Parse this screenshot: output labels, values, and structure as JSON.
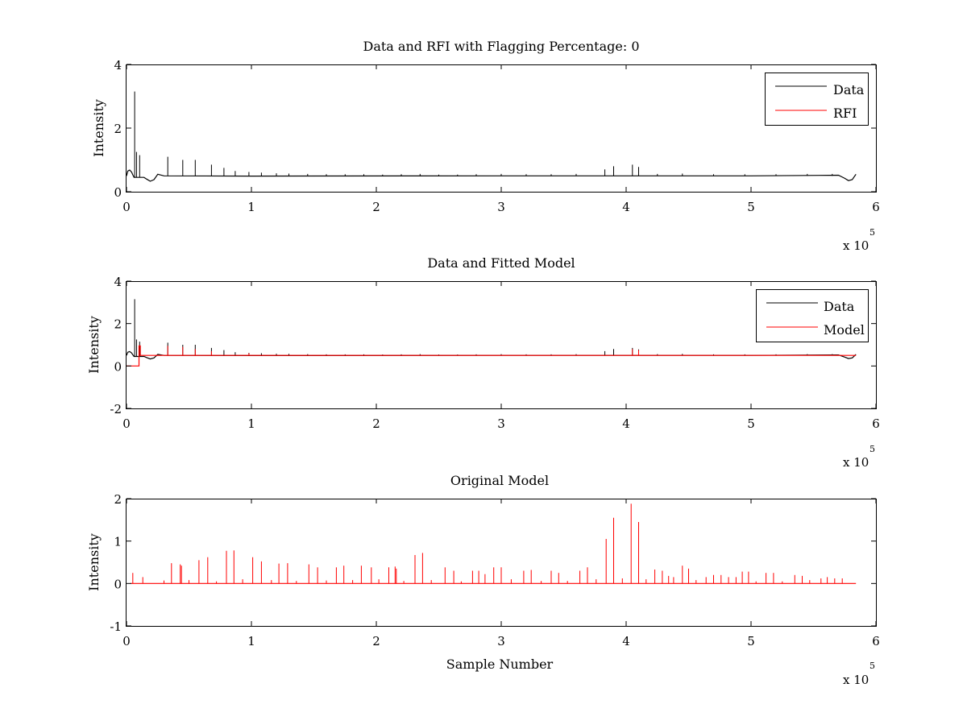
{
  "chart_data": [
    {
      "type": "line",
      "title": "Data and RFI with Flagging Percentage: 0",
      "xlabel": "",
      "ylabel": "Intensity",
      "xlim": [
        0,
        600000
      ],
      "ylim": [
        0,
        4
      ],
      "xticks": [
        0,
        1,
        2,
        3,
        4,
        5,
        6
      ],
      "yticks": [
        0,
        2,
        4
      ],
      "x_multiplier": {
        "prefix": "x 10",
        "exponent": "5"
      },
      "grid": false,
      "legend": "top-right",
      "colors": {
        "data": "#000000",
        "rfi": "#ff0000"
      },
      "series": [
        {
          "name": "Data",
          "color": "#000000",
          "baseline": [
            [
              0,
              0.5
            ],
            [
              1000,
              0.65
            ],
            [
              2500,
              0.68
            ],
            [
              4000,
              0.62
            ],
            [
              6000,
              0.45
            ],
            [
              14000,
              0.45
            ],
            [
              16000,
              0.4
            ],
            [
              19000,
              0.33
            ],
            [
              22000,
              0.38
            ],
            [
              25000,
              0.55
            ],
            [
              30000,
              0.5
            ],
            [
              100000,
              0.49
            ],
            [
              300000,
              0.5
            ],
            [
              500000,
              0.5
            ],
            [
              570000,
              0.52
            ],
            [
              575000,
              0.42
            ],
            [
              578000,
              0.35
            ],
            [
              581000,
              0.38
            ],
            [
              584000,
              0.55
            ]
          ],
          "spikes": [
            [
              6500,
              3.15
            ],
            [
              8000,
              1.25
            ],
            [
              10500,
              1.15
            ],
            [
              33000,
              1.1
            ],
            [
              45000,
              1.0
            ],
            [
              55000,
              1.0
            ],
            [
              68000,
              0.85
            ],
            [
              78000,
              0.75
            ],
            [
              87000,
              0.65
            ],
            [
              98000,
              0.62
            ],
            [
              108000,
              0.6
            ],
            [
              120000,
              0.58
            ],
            [
              130000,
              0.57
            ],
            [
              145000,
              0.56
            ],
            [
              160000,
              0.55
            ],
            [
              175000,
              0.55
            ],
            [
              190000,
              0.55
            ],
            [
              205000,
              0.54
            ],
            [
              220000,
              0.55
            ],
            [
              235000,
              0.56
            ],
            [
              250000,
              0.54
            ],
            [
              265000,
              0.54
            ],
            [
              280000,
              0.55
            ],
            [
              300000,
              0.56
            ],
            [
              320000,
              0.55
            ],
            [
              340000,
              0.55
            ],
            [
              360000,
              0.56
            ],
            [
              383000,
              0.7
            ],
            [
              390000,
              0.8
            ],
            [
              405000,
              0.85
            ],
            [
              410000,
              0.78
            ],
            [
              425000,
              0.56
            ],
            [
              445000,
              0.57
            ],
            [
              470000,
              0.55
            ],
            [
              495000,
              0.55
            ],
            [
              520000,
              0.55
            ],
            [
              545000,
              0.56
            ],
            [
              565000,
              0.56
            ]
          ]
        },
        {
          "name": "RFI",
          "color": "#ff0000",
          "values": []
        }
      ]
    },
    {
      "type": "line",
      "title": "Data and Fitted Model",
      "xlabel": "",
      "ylabel": "Intensity",
      "xlim": [
        0,
        600000
      ],
      "ylim": [
        -2,
        4
      ],
      "xticks": [
        0,
        1,
        2,
        3,
        4,
        5,
        6
      ],
      "yticks": [
        -2,
        0,
        2,
        4
      ],
      "x_multiplier": {
        "prefix": "x 10",
        "exponent": "5"
      },
      "grid": false,
      "legend": "top-right",
      "series": [
        {
          "name": "Data",
          "color": "#000000",
          "baseline": [
            [
              0,
              0.5
            ],
            [
              1000,
              0.65
            ],
            [
              2500,
              0.68
            ],
            [
              4000,
              0.62
            ],
            [
              6000,
              0.45
            ],
            [
              14000,
              0.45
            ],
            [
              16000,
              0.4
            ],
            [
              19000,
              0.33
            ],
            [
              22000,
              0.38
            ],
            [
              25000,
              0.55
            ],
            [
              30000,
              0.5
            ],
            [
              100000,
              0.49
            ],
            [
              300000,
              0.5
            ],
            [
              500000,
              0.5
            ],
            [
              570000,
              0.52
            ],
            [
              575000,
              0.42
            ],
            [
              578000,
              0.35
            ],
            [
              581000,
              0.38
            ],
            [
              584000,
              0.55
            ]
          ],
          "spikes": [
            [
              6500,
              3.15
            ],
            [
              8000,
              1.25
            ],
            [
              10500,
              1.15
            ],
            [
              33000,
              1.1
            ],
            [
              45000,
              1.0
            ],
            [
              55000,
              1.0
            ],
            [
              68000,
              0.85
            ],
            [
              78000,
              0.75
            ],
            [
              87000,
              0.65
            ],
            [
              98000,
              0.62
            ],
            [
              108000,
              0.6
            ],
            [
              120000,
              0.58
            ],
            [
              130000,
              0.57
            ],
            [
              145000,
              0.56
            ],
            [
              160000,
              0.55
            ],
            [
              175000,
              0.55
            ],
            [
              190000,
              0.55
            ],
            [
              205000,
              0.54
            ],
            [
              220000,
              0.55
            ],
            [
              235000,
              0.56
            ],
            [
              250000,
              0.54
            ],
            [
              265000,
              0.54
            ],
            [
              280000,
              0.55
            ],
            [
              300000,
              0.56
            ],
            [
              320000,
              0.55
            ],
            [
              340000,
              0.55
            ],
            [
              360000,
              0.56
            ],
            [
              383000,
              0.7
            ],
            [
              390000,
              0.8
            ],
            [
              405000,
              0.85
            ],
            [
              410000,
              0.78
            ],
            [
              425000,
              0.56
            ],
            [
              445000,
              0.57
            ],
            [
              470000,
              0.55
            ],
            [
              495000,
              0.55
            ],
            [
              520000,
              0.55
            ],
            [
              545000,
              0.56
            ],
            [
              565000,
              0.56
            ]
          ]
        },
        {
          "name": "Model",
          "color": "#ff0000",
          "baseline": [
            [
              0,
              0.0
            ],
            [
              10000,
              0.0
            ],
            [
              10000,
              0.95
            ],
            [
              11000,
              0.95
            ],
            [
              11000,
              0.5
            ],
            [
              12000,
              0.5
            ],
            [
              584000,
              0.5
            ]
          ],
          "spikes": [
            [
              33000,
              0.95
            ],
            [
              45000,
              0.9
            ],
            [
              55000,
              0.8
            ],
            [
              68000,
              0.7
            ],
            [
              98000,
              0.6
            ],
            [
              405000,
              0.8
            ],
            [
              410000,
              0.75
            ]
          ]
        }
      ]
    },
    {
      "type": "line",
      "title": "Original Model",
      "xlabel": "Sample Number",
      "ylabel": "Intensity",
      "xlim": [
        0,
        600000
      ],
      "ylim": [
        -1,
        2
      ],
      "xticks": [
        0,
        1,
        2,
        3,
        4,
        5,
        6
      ],
      "yticks": [
        -1,
        0,
        1,
        2
      ],
      "x_multiplier": {
        "prefix": "x 10",
        "exponent": "5"
      },
      "grid": false,
      "legend": "none",
      "series": [
        {
          "color": "#ff0000",
          "baseline": [
            [
              3000,
              0.0
            ],
            [
              584000,
              0.0
            ]
          ],
          "spikes": [
            [
              5000,
              0.25
            ],
            [
              13000,
              0.15
            ],
            [
              30000,
              0.07
            ],
            [
              36000,
              0.48
            ],
            [
              43000,
              0.45
            ],
            [
              44000,
              0.42
            ],
            [
              50000,
              0.08
            ],
            [
              58000,
              0.55
            ],
            [
              65000,
              0.62
            ],
            [
              72000,
              0.05
            ],
            [
              80000,
              0.77
            ],
            [
              86000,
              0.78
            ],
            [
              93000,
              0.1
            ],
            [
              101000,
              0.62
            ],
            [
              108000,
              0.52
            ],
            [
              116000,
              0.08
            ],
            [
              122000,
              0.47
            ],
            [
              129000,
              0.48
            ],
            [
              136000,
              0.06
            ],
            [
              146000,
              0.45
            ],
            [
              153000,
              0.38
            ],
            [
              160000,
              0.07
            ],
            [
              168000,
              0.38
            ],
            [
              174000,
              0.42
            ],
            [
              181000,
              0.08
            ],
            [
              188000,
              0.42
            ],
            [
              196000,
              0.38
            ],
            [
              202000,
              0.1
            ],
            [
              210000,
              0.38
            ],
            [
              215000,
              0.4
            ],
            [
              216000,
              0.35
            ],
            [
              222000,
              0.06
            ],
            [
              231000,
              0.67
            ],
            [
              237000,
              0.72
            ],
            [
              244000,
              0.08
            ],
            [
              255000,
              0.38
            ],
            [
              262000,
              0.3
            ],
            [
              268000,
              0.05
            ],
            [
              277000,
              0.3
            ],
            [
              282000,
              0.3
            ],
            [
              287000,
              0.22
            ],
            [
              294000,
              0.38
            ],
            [
              300000,
              0.38
            ],
            [
              308000,
              0.1
            ],
            [
              318000,
              0.3
            ],
            [
              324000,
              0.32
            ],
            [
              332000,
              0.06
            ],
            [
              340000,
              0.3
            ],
            [
              346000,
              0.25
            ],
            [
              353000,
              0.06
            ],
            [
              363000,
              0.3
            ],
            [
              369000,
              0.38
            ],
            [
              376000,
              0.1
            ],
            [
              384000,
              1.05
            ],
            [
              390000,
              1.55
            ],
            [
              397000,
              0.12
            ],
            [
              404000,
              1.88
            ],
            [
              410000,
              1.45
            ],
            [
              416000,
              0.1
            ],
            [
              423000,
              0.33
            ],
            [
              429000,
              0.3
            ],
            [
              434000,
              0.18
            ],
            [
              438000,
              0.15
            ],
            [
              445000,
              0.42
            ],
            [
              450000,
              0.35
            ],
            [
              456000,
              0.08
            ],
            [
              464000,
              0.15
            ],
            [
              470000,
              0.2
            ],
            [
              476000,
              0.2
            ],
            [
              482000,
              0.15
            ],
            [
              488000,
              0.15
            ],
            [
              493000,
              0.28
            ],
            [
              498000,
              0.28
            ],
            [
              504000,
              0.05
            ],
            [
              512000,
              0.25
            ],
            [
              518000,
              0.25
            ],
            [
              525000,
              0.05
            ],
            [
              535000,
              0.2
            ],
            [
              541000,
              0.18
            ],
            [
              547000,
              0.08
            ],
            [
              556000,
              0.12
            ],
            [
              561000,
              0.15
            ],
            [
              567000,
              0.12
            ],
            [
              573000,
              0.12
            ]
          ]
        }
      ]
    }
  ]
}
